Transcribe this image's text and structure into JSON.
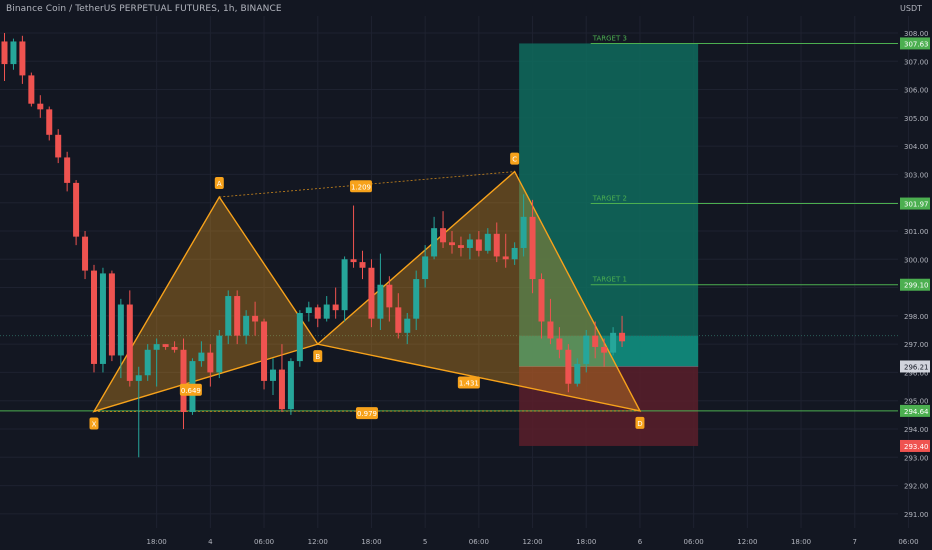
{
  "header": {
    "title": "Binance Coin / TetherUS PERPETUAL FUTURES, 1h, BINANCE",
    "currency": "USDT"
  },
  "colors": {
    "background": "#131722",
    "up": "#26a69a",
    "down": "#ef5350",
    "pattern": "#f7a21b",
    "target": "#4caf50",
    "profit_zone": "#0f6b5d",
    "loss_zone": "#5a1f2a"
  },
  "chart_data": {
    "type": "candlestick",
    "pattern": "harmonic XABCD",
    "y_axis": {
      "min": 290.5,
      "max": 308.6,
      "ticks": [
        291.0,
        292.0,
        293.0,
        294.0,
        295.0,
        296.0,
        297.0,
        298.0,
        299.0,
        300.0,
        301.0,
        302.0,
        303.0,
        304.0,
        305.0,
        306.0,
        307.0,
        308.0
      ]
    },
    "x_axis": {
      "ticks": [
        {
          "label": "18:00",
          "slot": 17
        },
        {
          "label": "4",
          "slot": 23
        },
        {
          "label": "06:00",
          "slot": 29
        },
        {
          "label": "12:00",
          "slot": 35
        },
        {
          "label": "18:00",
          "slot": 41
        },
        {
          "label": "5",
          "slot": 47
        },
        {
          "label": "06:00",
          "slot": 53
        },
        {
          "label": "12:00",
          "slot": 59
        },
        {
          "label": "18:00",
          "slot": 65
        },
        {
          "label": "6",
          "slot": 71
        },
        {
          "label": "06:00",
          "slot": 77
        },
        {
          "label": "12:00",
          "slot": 83
        },
        {
          "label": "18:00",
          "slot": 89
        },
        {
          "label": "7",
          "slot": 95
        },
        {
          "label": "06:00",
          "slot": 101
        },
        {
          "label": "12:00",
          "slot": 107
        }
      ]
    },
    "candles": [
      [
        307.7,
        308.0,
        306.3,
        306.9
      ],
      [
        306.9,
        307.8,
        306.7,
        307.7
      ],
      [
        307.7,
        307.9,
        306.2,
        306.5
      ],
      [
        306.5,
        306.6,
        305.4,
        305.5
      ],
      [
        305.5,
        305.8,
        305.0,
        305.3
      ],
      [
        305.3,
        305.4,
        304.2,
        304.4
      ],
      [
        304.4,
        304.6,
        303.4,
        303.6
      ],
      [
        303.6,
        303.8,
        302.4,
        302.7
      ],
      [
        302.7,
        302.8,
        300.5,
        300.8
      ],
      [
        300.8,
        301.0,
        299.3,
        299.6
      ],
      [
        299.6,
        299.8,
        296.0,
        296.3
      ],
      [
        296.3,
        299.7,
        296.0,
        299.5
      ],
      [
        299.5,
        299.6,
        296.4,
        296.6
      ],
      [
        296.6,
        298.6,
        295.8,
        298.4
      ],
      [
        298.4,
        298.9,
        295.5,
        295.7
      ],
      [
        295.7,
        296.2,
        293.0,
        295.9
      ],
      [
        295.9,
        297.0,
        295.7,
        296.8
      ],
      [
        296.8,
        297.2,
        295.5,
        297.0
      ],
      [
        297.0,
        297.0,
        296.8,
        296.9
      ],
      [
        296.9,
        297.1,
        296.7,
        296.8
      ],
      [
        296.8,
        297.2,
        294.0,
        294.6
      ],
      [
        294.6,
        296.5,
        294.5,
        296.4
      ],
      [
        296.4,
        297.1,
        296.2,
        296.7
      ],
      [
        296.7,
        297.0,
        295.5,
        296.0
      ],
      [
        296.0,
        297.5,
        295.8,
        297.3
      ],
      [
        297.3,
        298.9,
        297.0,
        298.7
      ],
      [
        298.7,
        298.9,
        297.0,
        297.3
      ],
      [
        297.3,
        298.2,
        297.0,
        298.0
      ],
      [
        298.0,
        298.5,
        297.3,
        297.8
      ],
      [
        297.8,
        297.9,
        295.4,
        295.7
      ],
      [
        295.7,
        296.5,
        295.2,
        296.1
      ],
      [
        296.1,
        297.0,
        294.6,
        294.7
      ],
      [
        294.7,
        296.5,
        294.5,
        296.4
      ],
      [
        296.4,
        298.2,
        296.2,
        298.1
      ],
      [
        298.1,
        298.5,
        297.8,
        298.3
      ],
      [
        298.3,
        298.4,
        297.6,
        297.9
      ],
      [
        297.9,
        298.7,
        297.8,
        298.4
      ],
      [
        298.4,
        299.0,
        297.9,
        298.2
      ],
      [
        298.2,
        300.1,
        297.8,
        300.0
      ],
      [
        300.0,
        301.9,
        299.7,
        299.9
      ],
      [
        299.9,
        300.3,
        299.3,
        299.7
      ],
      [
        299.7,
        300.0,
        297.6,
        297.9
      ],
      [
        297.9,
        300.2,
        297.5,
        299.1
      ],
      [
        299.1,
        299.4,
        297.8,
        298.3
      ],
      [
        298.3,
        298.8,
        297.2,
        297.4
      ],
      [
        297.4,
        298.1,
        297.0,
        297.9
      ],
      [
        297.9,
        299.6,
        297.5,
        299.3
      ],
      [
        299.3,
        300.5,
        299.0,
        300.1
      ],
      [
        300.1,
        301.5,
        300.0,
        301.1
      ],
      [
        301.1,
        301.7,
        300.4,
        300.6
      ],
      [
        300.6,
        301.0,
        300.2,
        300.5
      ],
      [
        300.5,
        300.8,
        300.1,
        300.4
      ],
      [
        300.4,
        300.9,
        300.0,
        300.7
      ],
      [
        300.7,
        301.0,
        300.1,
        300.3
      ],
      [
        300.3,
        301.1,
        300.2,
        300.9
      ],
      [
        300.9,
        301.3,
        299.9,
        300.1
      ],
      [
        300.1,
        300.9,
        299.7,
        300.0
      ],
      [
        300.0,
        300.6,
        299.8,
        300.4
      ],
      [
        300.4,
        302.3,
        300.1,
        301.5
      ],
      [
        301.5,
        302.1,
        298.8,
        299.3
      ],
      [
        299.3,
        299.5,
        297.2,
        297.8
      ],
      [
        297.8,
        298.6,
        297.0,
        297.2
      ],
      [
        297.2,
        297.6,
        296.5,
        296.8
      ],
      [
        296.8,
        297.0,
        295.3,
        295.6
      ],
      [
        295.6,
        296.5,
        295.5,
        296.3
      ],
      [
        296.3,
        297.5,
        296.0,
        297.3
      ],
      [
        297.3,
        297.8,
        296.5,
        296.9
      ],
      [
        296.9,
        297.2,
        296.2,
        296.7
      ],
      [
        296.7,
        297.6,
        296.6,
        297.4
      ],
      [
        297.4,
        298.0,
        296.9,
        297.1
      ]
    ],
    "pattern_points": [
      {
        "label": "X",
        "slot": 10,
        "price": 294.62
      },
      {
        "label": "A",
        "slot": 24,
        "price": 302.2
      },
      {
        "label": "B",
        "slot": 35,
        "price": 297.0
      },
      {
        "label": "C",
        "slot": 57,
        "price": 303.1
      },
      {
        "label": "D",
        "slot": 71,
        "price": 294.64
      }
    ],
    "ratios": [
      "0.649",
      "1.209",
      "1.431",
      "0.979"
    ],
    "targets": [
      {
        "label": "TARGET 1",
        "price": 299.1,
        "tag": "299.10"
      },
      {
        "label": "TARGET 2",
        "price": 301.97,
        "tag": "301.97"
      },
      {
        "label": "TARGET 3",
        "price": 307.63,
        "tag": "307.63"
      }
    ],
    "entry": {
      "price": 296.21,
      "tag": "296.21"
    },
    "level": {
      "price": 294.64,
      "tag": "294.64"
    },
    "stop": {
      "price": 293.4,
      "tag": "293.40"
    },
    "current_price": 297.3
  }
}
